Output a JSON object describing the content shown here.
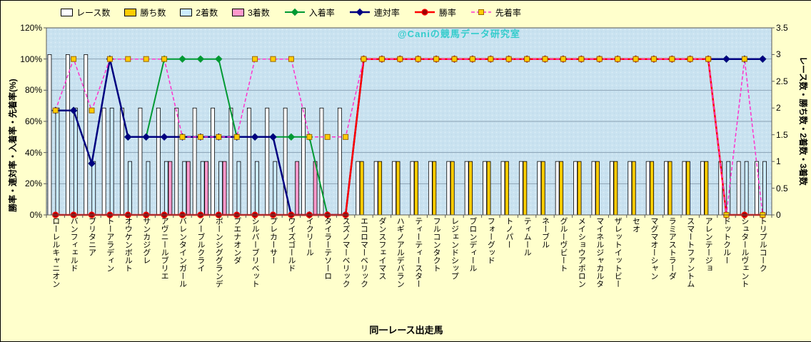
{
  "watermark": {
    "text": "@Caniの競馬データ研究室",
    "color": "#33CCCC"
  },
  "chart_data": {
    "type": "bar",
    "subtype": "bar-line-combo",
    "xlabel": "同一レース出走馬",
    "ylabel_left": "勝率・連対率・入着率・先着率(%)",
    "ylabel_right": "レース数・勝ち数・2着数・3着数",
    "page_bg": "#FFFFCC",
    "plot_bg": "#C9E2F0",
    "grid": true,
    "legend_position": "top",
    "left_axis": {
      "min": 0,
      "max": 120,
      "tick_values": [
        0,
        20,
        40,
        60,
        80,
        100,
        120
      ],
      "tick_labels": [
        "0%",
        "20%",
        "40%",
        "60%",
        "80%",
        "100%",
        "120%"
      ]
    },
    "right_axis": {
      "min": 0,
      "max": 3.5,
      "tick_values": [
        0,
        0.5,
        1,
        1.5,
        2,
        2.5,
        3,
        3.5
      ],
      "tick_labels": [
        "0",
        "0.5",
        "1",
        "1.5",
        "2",
        "2.5",
        "3",
        "3.5"
      ]
    },
    "categories": [
      "ローレルキャニオン",
      "バンフィェルド",
      "ブリタニア",
      "トーアラディン",
      "オウケンボルト",
      "サンカジグレ",
      "アヴニールブリエ",
      "バレンタインガール",
      "ノーブルクライ",
      "ボーンシググランデ",
      "ブエナオンダ",
      "シルバーブリベット",
      "プレカーサー",
      "ワイズゴールド",
      "イクリール",
      "タイラーテソーロ",
      "スズノマーベリック",
      "エコロマーベリック",
      "ダンスフェイマス",
      "ハギノアルデバラン",
      "ティーティースター",
      "フルコンタクト",
      "レジェンドシップ",
      "ブロンディール",
      "フォーグッド",
      "トノパー",
      "ティムール",
      "ネーブル",
      "グルーヴビート",
      "メイショウアポロン",
      "マイネルジャカルタ",
      "ザレットイットビー",
      "セオ",
      "マグマオーシャン",
      "ラミアストラーダ",
      "スマートファントム",
      "アレンテージョ",
      "ドットクルー",
      "シュタールヴェント",
      "トリプルコーク"
    ],
    "bar_series": [
      {
        "key": "races",
        "name": "レース数",
        "color": "#FFFFFF",
        "axis": "right",
        "values": [
          3,
          3,
          3,
          2,
          2,
          2,
          2,
          2,
          2,
          2,
          2,
          2,
          2,
          2,
          2,
          2,
          2,
          1,
          1,
          1,
          1,
          1,
          1,
          1,
          1,
          1,
          1,
          1,
          1,
          1,
          1,
          1,
          1,
          1,
          1,
          1,
          1,
          1,
          1,
          1
        ]
      },
      {
        "key": "wins",
        "name": "勝ち数",
        "color": "#FFCC00",
        "axis": "right",
        "values": [
          0,
          0,
          0,
          0,
          0,
          0,
          0,
          0,
          0,
          0,
          0,
          0,
          0,
          0,
          0,
          0,
          0,
          1,
          1,
          1,
          1,
          1,
          1,
          1,
          1,
          1,
          1,
          1,
          1,
          1,
          1,
          1,
          1,
          1,
          1,
          1,
          1,
          0,
          0,
          0
        ]
      },
      {
        "key": "seconds",
        "name": "2着数",
        "color": "#CCECFF",
        "axis": "right",
        "values": [
          2,
          2,
          1,
          2,
          1,
          1,
          1,
          1,
          1,
          1,
          1,
          1,
          1,
          0,
          0,
          0,
          0,
          0,
          0,
          0,
          0,
          0,
          0,
          0,
          0,
          0,
          0,
          0,
          0,
          0,
          0,
          0,
          0,
          0,
          0,
          0,
          0,
          1,
          1,
          1
        ]
      },
      {
        "key": "thirds",
        "name": "3着数",
        "color": "#FF99CC",
        "axis": "right",
        "values": [
          0,
          0,
          0,
          0,
          0,
          0,
          1,
          1,
          1,
          1,
          0,
          0,
          0,
          1,
          1,
          0,
          0,
          0,
          0,
          0,
          0,
          0,
          0,
          0,
          0,
          0,
          0,
          0,
          0,
          0,
          0,
          0,
          0,
          0,
          0,
          0,
          0,
          0,
          0,
          0
        ]
      }
    ],
    "line_series": [
      {
        "key": "top3-rate",
        "name": "入着率",
        "color": "#009933",
        "width": 2,
        "marker": "diamond",
        "marker_fill": "#009933",
        "axis": "left",
        "values": [
          67,
          67,
          33,
          100,
          50,
          50,
          100,
          100,
          100,
          100,
          50,
          50,
          50,
          50,
          50,
          0,
          0,
          100,
          100,
          100,
          100,
          100,
          100,
          100,
          100,
          100,
          100,
          100,
          100,
          100,
          100,
          100,
          100,
          100,
          100,
          100,
          100,
          100,
          100,
          100
        ]
      },
      {
        "key": "top2-rate",
        "name": "連対率",
        "color": "#000080",
        "width": 2.5,
        "marker": "diamond",
        "marker_fill": "#000080",
        "axis": "left",
        "values": [
          67,
          67,
          33,
          100,
          50,
          50,
          50,
          50,
          50,
          50,
          50,
          50,
          50,
          0,
          0,
          0,
          0,
          100,
          100,
          100,
          100,
          100,
          100,
          100,
          100,
          100,
          100,
          100,
          100,
          100,
          100,
          100,
          100,
          100,
          100,
          100,
          100,
          100,
          100,
          100
        ]
      },
      {
        "key": "win-rate",
        "name": "勝率",
        "color": "#FF0000",
        "width": 2.5,
        "marker": "circle",
        "marker_fill": "#A00000",
        "axis": "left",
        "values": [
          0,
          0,
          0,
          0,
          0,
          0,
          0,
          0,
          0,
          0,
          0,
          0,
          0,
          0,
          0,
          0,
          0,
          100,
          100,
          100,
          100,
          100,
          100,
          100,
          100,
          100,
          100,
          100,
          100,
          100,
          100,
          100,
          100,
          100,
          100,
          100,
          100,
          0,
          0,
          0
        ]
      },
      {
        "key": "ahead-rate",
        "name": "先着率",
        "color": "#FF33CC",
        "width": 1.5,
        "dash": "5 3",
        "marker": "square",
        "marker_fill": "#FFCC00",
        "marker_stroke": "#996600",
        "axis": "left",
        "values": [
          67,
          100,
          67,
          100,
          100,
          100,
          100,
          50,
          50,
          50,
          50,
          100,
          100,
          100,
          50,
          50,
          50,
          100,
          100,
          100,
          100,
          100,
          100,
          100,
          100,
          100,
          100,
          100,
          100,
          100,
          100,
          100,
          100,
          100,
          100,
          100,
          100,
          0,
          100,
          0
        ]
      }
    ]
  }
}
